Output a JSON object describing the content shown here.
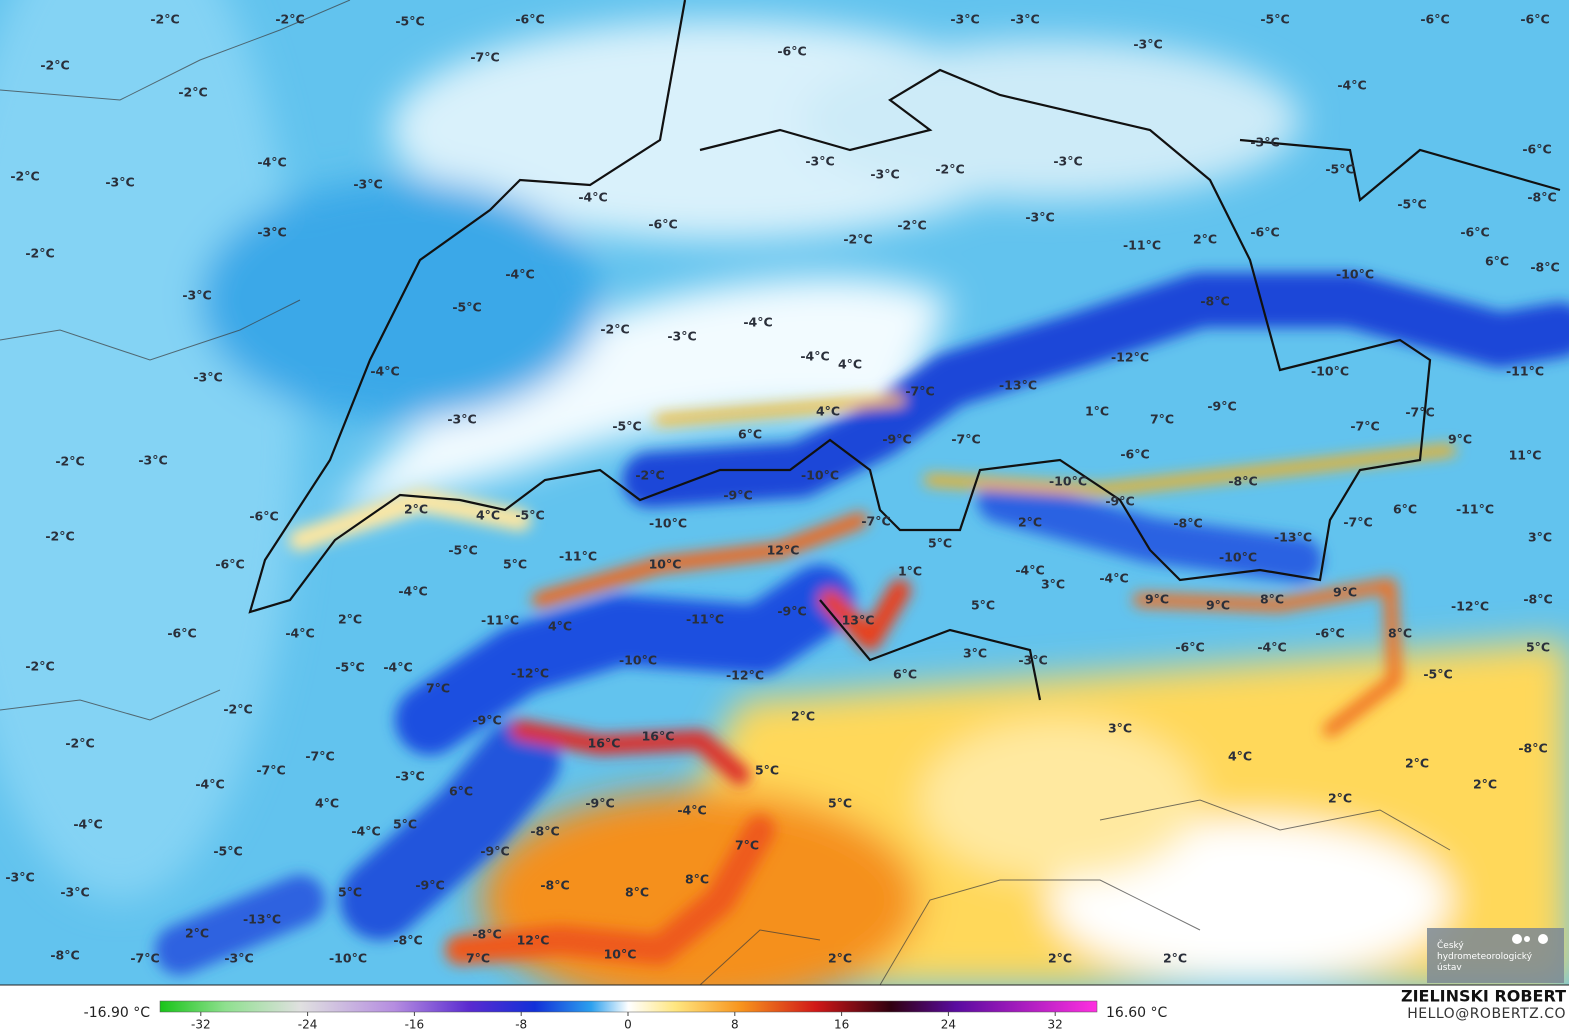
{
  "map": {
    "labels": [
      "-2°C",
      "-2°C",
      "-5°C",
      "-6°C",
      "-3°C",
      "-3°C",
      "-5°C",
      "-6°C",
      "-6°C",
      "-2°C",
      "-7°C",
      "-6°C",
      "-3°C",
      "-2°C",
      "-4°C",
      "-2°C",
      "-3°C",
      "-4°C",
      "-3°C",
      "-3°C",
      "-3°C",
      "-2°C",
      "-3°C",
      "-3°C",
      "-5°C",
      "-6°C",
      "-4°C",
      "-6°C",
      "-3°C",
      "-2°C",
      "-2°C",
      "-3°C",
      "-5°C",
      "-8°C",
      "-11°C",
      "2°C",
      "-6°C",
      "-6°C",
      "-2°C",
      "-4°C",
      "-3°C",
      "-5°C",
      "-10°C",
      "6°C",
      "-8°C",
      "-2°C",
      "-3°C",
      "-4°C",
      "-8°C",
      "-4°C",
      "4°C",
      "-12°C",
      "-10°C",
      "-11°C",
      "-3°C",
      "-4°C",
      "-7°C",
      "-13°C",
      "-3°C",
      "-5°C",
      "4°C",
      "6°C",
      "-9°C",
      "-7°C",
      "1°C",
      "7°C",
      "-9°C",
      "-7°C",
      "-7°C",
      "9°C",
      "-2°C",
      "-3°C",
      "-6°C",
      "11°C",
      "-2°C",
      "-10°C",
      "-10°C",
      "-8°C",
      "-9°C",
      "-9°C",
      "-11°C",
      "6°C",
      "-6°C",
      "2°C",
      "4°C",
      "-5°C",
      "-10°C",
      "-7°C",
      "2°C",
      "-8°C",
      "-7°C",
      "-13°C",
      "3°C",
      "-2°C",
      "-5°C",
      "-11°C",
      "12°C",
      "5°C",
      "-10°C",
      "-6°C",
      "5°C",
      "10°C",
      "1°C",
      "-4°C",
      "3°C",
      "-4°C",
      "-4°C",
      "9°C",
      "9°C",
      "8°C",
      "9°C",
      "5°C",
      "-12°C",
      "-8°C",
      "-11°C",
      "-11°C",
      "-9°C",
      "13°C",
      "2°C",
      "4°C",
      "-6°C",
      "-4°C",
      "8°C",
      "-6°C",
      "-6°C",
      "-4°C",
      "3°C",
      "-3°C",
      "-10°C",
      "5°C",
      "-2°C",
      "-5°C",
      "-4°C",
      "-12°C",
      "-12°C",
      "6°C",
      "-5°C",
      "7°C",
      "-2°C",
      "2°C",
      "-9°C",
      "3°C",
      "-2°C",
      "16°C",
      "16°C",
      "4°C",
      "-8°C",
      "-7°C",
      "-7°C",
      "-3°C",
      "5°C",
      "2°C",
      "2°C",
      "-4°C",
      "6°C",
      "2°C",
      "4°C",
      "5°C",
      "-9°C",
      "-4°C",
      "-4°C",
      "5°C",
      "-4°C",
      "-8°C",
      "-5°C",
      "-9°C",
      "7°C",
      "-3°C",
      "-9°C",
      "5°C",
      "-8°C",
      "8°C",
      "8°C",
      "-3°C",
      "-13°C",
      "-8°C",
      "12°C",
      "-8°C",
      "2°C",
      "-8°C",
      "-7°C",
      "-3°C",
      "-10°C",
      "7°C",
      "10°C",
      "2°C",
      "2°C",
      "2°C"
    ]
  },
  "colorbar": {
    "min_label": "-16.90 °C",
    "max_label": "16.60 °C",
    "ticks": [
      -32,
      -24,
      -16,
      -8,
      0,
      8,
      16,
      24,
      32
    ]
  },
  "credits": {
    "author": "ZIELINSKI ROBERT",
    "contact": "HELLO@ROBERTZ.CO"
  },
  "logo": {
    "lines": [
      "Český",
      "hydrometeorologický",
      "ústav"
    ]
  }
}
